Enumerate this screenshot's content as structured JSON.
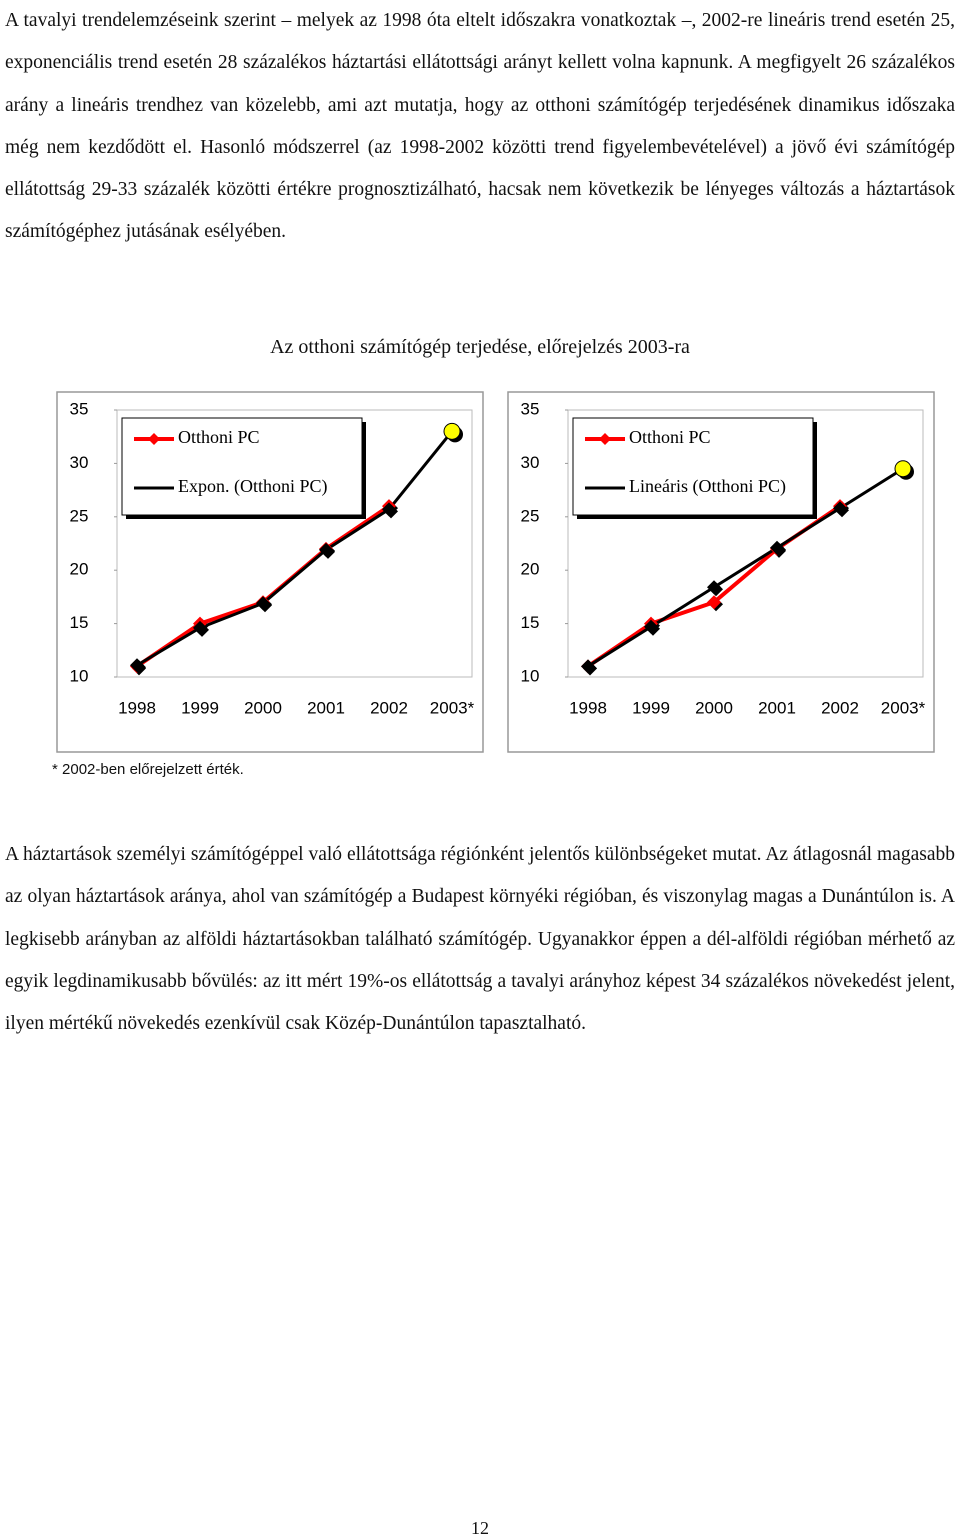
{
  "paragraphs": [
    "A tavalyi trendelemzéseink szerint – melyek az 1998 óta eltelt időszakra vonatkoztak –, 2002-re lineáris trend esetén 25, exponenciális trend esetén 28 százalékos háztartási ellátottsági arányt kellett volna kapnunk. A megfigyelt 26 százalékos arány a lineáris trendhez van közelebb, ami azt mutatja, hogy az otthoni számítógép terjedésének dinamikus időszaka még nem kezdődött el. Hasonló módszerrel (az 1998-2002 közötti trend figyelembevételével) a jövő évi számítógép ellátottság 29-33 százalék közötti értékre prognosztizálható, hacsak nem következik be lényeges változás a háztartások számítógéphez jutásának esélyében.",
    "A háztartások személyi számítógéppel való ellátottsága régiónként jelentős különbségeket mutat. Az átlagosnál magasabb az olyan háztartások aránya, ahol van számítógép a Budapest környéki régióban, és viszonylag magas a Dunántúlon is. A legkisebb arányban az alföldi háztartásokban található számítógép. Ugyanakkor éppen a dél-alföldi régióban mérhető az egyik legdinamikusabb bővülés: az itt mért 19%-os ellátottság a tavalyi arányhoz képest 34 százalékos növekedést jelent, ilyen mértékű növekedés ezenkívül csak Közép-Dunántúlon tapasztalható."
  ],
  "figure_title": "Az otthoni számítógép terjedése, előrejelzés 2003-ra",
  "chart_data": [
    {
      "type": "line",
      "categories": [
        "1998",
        "1999",
        "2000",
        "2001",
        "2002",
        "2003*"
      ],
      "ylim": [
        10,
        35
      ],
      "yticks": [
        10,
        15,
        20,
        25,
        30,
        35
      ],
      "legend": "top-left",
      "series": [
        {
          "name": "Otthoni PC",
          "color": "#ff0000",
          "values": [
            11,
            15,
            17,
            22,
            26,
            null
          ]
        },
        {
          "name": "Expon. (Otthoni PC)",
          "color": "#000000",
          "values": [
            11.1,
            14.6,
            16.9,
            21.9,
            25.7,
            33
          ],
          "last_point_color": "#ffff00"
        }
      ]
    },
    {
      "type": "line",
      "categories": [
        "1998",
        "1999",
        "2000",
        "2001",
        "2002",
        "2003*"
      ],
      "ylim": [
        10,
        35
      ],
      "yticks": [
        10,
        15,
        20,
        25,
        30,
        35
      ],
      "legend": "top-left",
      "series": [
        {
          "name": "Otthoni PC",
          "color": "#ff0000",
          "values": [
            11,
            15,
            17,
            22,
            26,
            null
          ]
        },
        {
          "name": "Lineáris (Otthoni PC)",
          "color": "#000000",
          "values": [
            11,
            14.7,
            18.4,
            22.1,
            25.8,
            29.5
          ],
          "last_point_color": "#ffff00"
        }
      ]
    }
  ],
  "footnote": "* 2002-ben előrejelzett érték.",
  "page_number": "12"
}
